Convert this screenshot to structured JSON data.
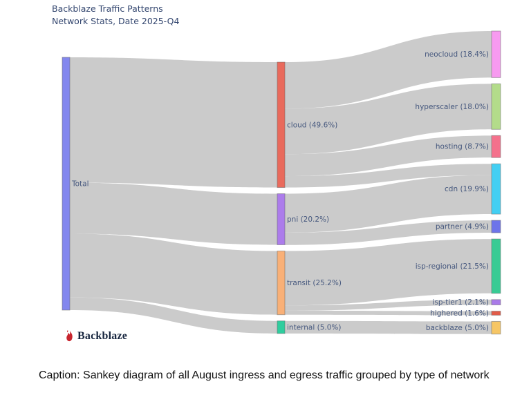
{
  "header": {
    "title_line1": "Backblaze Traffic Patterns",
    "title_line2": "Network Stats, Date 2025-Q4"
  },
  "logo": {
    "text": "Backblaze",
    "icon": "flame-icon",
    "flame_color": "#c8252e"
  },
  "caption": {
    "text": "Caption: Sankey diagram of all August ingress and egress traffic grouped by type of network"
  },
  "chart_data": {
    "type": "sankey",
    "title": "Backblaze Traffic Patterns — Network Stats, Date 2025-Q4",
    "unit": "percent of total traffic",
    "orientation": "horizontal",
    "flow_color": "#cbcbcb",
    "label_color": "#46587e",
    "node_border_color": "rgba(110,110,110,0.55)",
    "nodes": [
      {
        "id": "total",
        "label": "Total",
        "column": 0,
        "value": 100.0,
        "color": "#8387ee"
      },
      {
        "id": "cloud",
        "label": "cloud (49.6%)",
        "column": 1,
        "value": 49.6,
        "color": "#e96a5c"
      },
      {
        "id": "pni",
        "label": "pni (20.2%)",
        "column": 1,
        "value": 20.2,
        "color": "#ac7ceb"
      },
      {
        "id": "transit",
        "label": "transit (25.2%)",
        "column": 1,
        "value": 25.2,
        "color": "#f9b077"
      },
      {
        "id": "internal",
        "label": "internal (5.0%)",
        "column": 1,
        "value": 5.0,
        "color": "#2fcd9e"
      },
      {
        "id": "neocloud",
        "label": "neocloud (18.4%)",
        "column": 2,
        "value": 18.4,
        "color": "#f79af0"
      },
      {
        "id": "hyperscaler",
        "label": "hyperscaler (18.0%)",
        "column": 2,
        "value": 18.0,
        "color": "#b3dc8a"
      },
      {
        "id": "hosting",
        "label": "hosting (8.7%)",
        "column": 2,
        "value": 8.7,
        "color": "#f4718c"
      },
      {
        "id": "cdn",
        "label": "cdn (19.9%)",
        "column": 2,
        "value": 19.9,
        "color": "#43cff3"
      },
      {
        "id": "partner",
        "label": "partner (4.9%)",
        "column": 2,
        "value": 4.9,
        "color": "#6e74e9"
      },
      {
        "id": "isp-regional",
        "label": "isp-regional (21.5%)",
        "column": 2,
        "value": 21.5,
        "color": "#38cb94"
      },
      {
        "id": "isp-tier1",
        "label": "isp-tier1 (2.1%)",
        "column": 2,
        "value": 2.1,
        "color": "#aa7be9"
      },
      {
        "id": "highered",
        "label": "highered (1.6%)",
        "column": 2,
        "value": 1.6,
        "color": "#e25c49"
      },
      {
        "id": "backblaze",
        "label": "backblaze (5.0%)",
        "column": 2,
        "value": 5.0,
        "color": "#f6c665"
      }
    ],
    "links": [
      {
        "source": "total",
        "target": "cloud",
        "value": 49.6
      },
      {
        "source": "total",
        "target": "pni",
        "value": 20.2
      },
      {
        "source": "total",
        "target": "transit",
        "value": 25.2
      },
      {
        "source": "total",
        "target": "internal",
        "value": 5.0
      },
      {
        "source": "cloud",
        "target": "neocloud",
        "value": 18.4
      },
      {
        "source": "cloud",
        "target": "hyperscaler",
        "value": 18.0
      },
      {
        "source": "cloud",
        "target": "hosting",
        "value": 8.7
      },
      {
        "source": "cloud",
        "target": "cdn",
        "value": 4.5
      },
      {
        "source": "pni",
        "target": "cdn",
        "value": 15.4
      },
      {
        "source": "pni",
        "target": "partner",
        "value": 4.9
      },
      {
        "source": "transit",
        "target": "isp-regional",
        "value": 21.5
      },
      {
        "source": "transit",
        "target": "isp-tier1",
        "value": 2.1
      },
      {
        "source": "transit",
        "target": "highered",
        "value": 1.6
      },
      {
        "source": "internal",
        "target": "backblaze",
        "value": 5.0
      }
    ]
  }
}
